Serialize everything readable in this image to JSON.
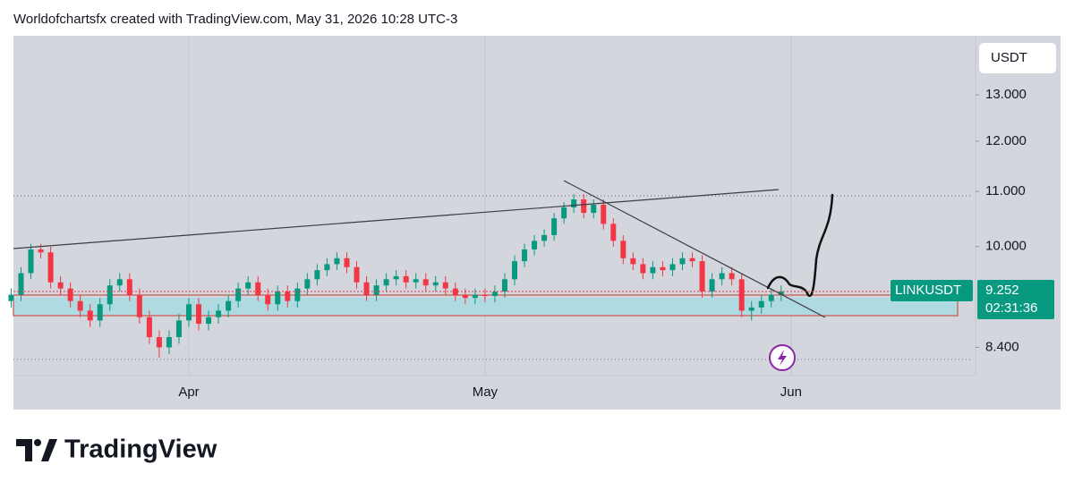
{
  "header": "Worldofchartsfx created with TradingView.com, May 31, 2026 10:28 UTC-3",
  "footer_logo": "TradingView",
  "chart_data": {
    "type": "candlestick",
    "symbol": "LINKUSDT",
    "currency": "USDT",
    "countdown": "02:31:36",
    "log_scale": true,
    "up_color": "#089981",
    "down_color": "#f23645",
    "categories": [
      null,
      null,
      null,
      null,
      null,
      null,
      null,
      null,
      null,
      null,
      null,
      null,
      null,
      null,
      null,
      null,
      null,
      null,
      "Apr",
      null,
      null,
      null,
      null,
      null,
      null,
      null,
      null,
      null,
      null,
      null,
      null,
      null,
      null,
      null,
      null,
      null,
      null,
      null,
      null,
      null,
      null,
      null,
      null,
      null,
      null,
      null,
      null,
      null,
      "May",
      null,
      null,
      null,
      null,
      null,
      null,
      null,
      null,
      null,
      null,
      null,
      null,
      null,
      null,
      null,
      null,
      null,
      null,
      null,
      null,
      null,
      null,
      null,
      null,
      null,
      null,
      null,
      null,
      null,
      null,
      "Jun"
    ],
    "open": [
      9.1,
      9.2,
      9.55,
      9.95,
      9.9,
      9.4,
      9.3,
      9.1,
      8.95,
      8.8,
      9.05,
      9.35,
      9.45,
      9.2,
      8.85,
      8.55,
      8.4,
      8.55,
      8.8,
      9.05,
      8.75,
      8.85,
      8.95,
      9.1,
      9.3,
      9.4,
      9.2,
      9.05,
      9.25,
      9.1,
      9.3,
      9.45,
      9.6,
      9.7,
      9.8,
      9.65,
      9.4,
      9.2,
      9.35,
      9.45,
      9.5,
      9.4,
      9.45,
      9.35,
      9.4,
      9.3,
      9.2,
      9.15,
      9.2,
      9.18,
      9.25,
      9.45,
      9.75,
      9.95,
      10.1,
      10.2,
      10.5,
      10.7,
      10.85,
      10.6,
      10.75,
      10.4,
      10.1,
      9.8,
      9.7,
      9.55,
      9.65,
      9.6,
      9.7,
      9.8,
      9.75,
      9.25,
      9.45,
      9.55,
      9.45,
      8.95,
      9.0,
      9.1,
      9.2,
      null
    ],
    "high": [
      9.3,
      9.65,
      10.05,
      10.05,
      10.0,
      9.5,
      9.4,
      9.2,
      9.05,
      9.15,
      9.45,
      9.55,
      9.55,
      9.3,
      8.95,
      8.65,
      8.65,
      8.9,
      9.15,
      9.15,
      8.95,
      9.05,
      9.2,
      9.4,
      9.5,
      9.5,
      9.3,
      9.35,
      9.35,
      9.4,
      9.55,
      9.7,
      9.8,
      9.9,
      9.9,
      9.75,
      9.5,
      9.45,
      9.55,
      9.6,
      9.6,
      9.55,
      9.55,
      9.5,
      9.5,
      9.4,
      9.3,
      9.3,
      9.3,
      9.35,
      9.55,
      9.85,
      10.05,
      10.2,
      10.3,
      10.6,
      10.8,
      10.95,
      10.95,
      10.85,
      10.85,
      10.5,
      10.2,
      9.9,
      9.8,
      9.75,
      9.75,
      9.8,
      9.9,
      9.9,
      9.85,
      9.55,
      9.65,
      9.65,
      9.55,
      9.1,
      9.2,
      9.3,
      9.35,
      null
    ],
    "low": [
      9.0,
      9.1,
      9.45,
      9.8,
      9.3,
      9.2,
      9.0,
      8.85,
      8.7,
      8.7,
      8.95,
      9.25,
      9.1,
      8.75,
      8.45,
      8.25,
      8.3,
      8.45,
      8.7,
      8.65,
      8.65,
      8.75,
      8.85,
      9.0,
      9.2,
      9.1,
      8.95,
      8.95,
      9.0,
      9.0,
      9.2,
      9.35,
      9.5,
      9.6,
      9.55,
      9.3,
      9.1,
      9.1,
      9.25,
      9.35,
      9.3,
      9.3,
      9.25,
      9.25,
      9.2,
      9.1,
      9.05,
      9.05,
      9.08,
      9.08,
      9.15,
      9.35,
      9.65,
      9.85,
      10.0,
      10.1,
      10.4,
      10.6,
      10.5,
      10.5,
      10.3,
      10.0,
      9.7,
      9.6,
      9.45,
      9.45,
      9.5,
      9.5,
      9.6,
      9.65,
      9.15,
      9.15,
      9.35,
      9.35,
      8.85,
      8.8,
      8.9,
      9.0,
      9.1,
      null
    ],
    "close": [
      9.2,
      9.55,
      9.95,
      9.9,
      9.4,
      9.3,
      9.1,
      8.95,
      8.8,
      9.05,
      9.35,
      9.45,
      9.2,
      8.85,
      8.55,
      8.4,
      8.55,
      8.8,
      9.05,
      8.75,
      8.85,
      8.95,
      9.1,
      9.3,
      9.4,
      9.2,
      9.05,
      9.25,
      9.1,
      9.3,
      9.45,
      9.6,
      9.7,
      9.8,
      9.65,
      9.4,
      9.2,
      9.35,
      9.45,
      9.5,
      9.4,
      9.45,
      9.35,
      9.4,
      9.3,
      9.2,
      9.15,
      9.2,
      9.18,
      9.25,
      9.45,
      9.75,
      9.95,
      10.1,
      10.2,
      10.5,
      10.7,
      10.85,
      10.6,
      10.75,
      10.4,
      10.1,
      9.8,
      9.7,
      9.55,
      9.65,
      9.6,
      9.7,
      9.8,
      9.75,
      9.25,
      9.45,
      9.55,
      9.45,
      8.95,
      9.0,
      9.1,
      9.2,
      9.252,
      null
    ],
    "ylim": [
      8.0,
      14.4
    ],
    "yticks": [
      {
        "value": 8.4,
        "label": "8.400"
      },
      {
        "value": 10,
        "label": "10.000"
      },
      {
        "value": 11,
        "label": "11.000"
      },
      {
        "value": 12,
        "label": "12.000"
      },
      {
        "value": 13,
        "label": "13.000"
      }
    ]
  }
}
